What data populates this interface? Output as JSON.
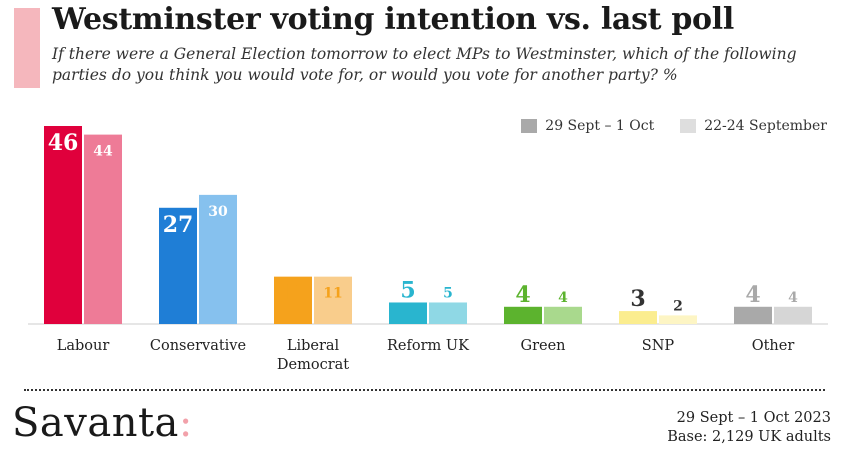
{
  "header": {
    "title": "Westminster voting intention vs. last poll",
    "subtitle": "If there were a General Election tomorrow to elect MPs to Westminster, which of the following parties do you think you would vote for, or would you vote for another party? %"
  },
  "chart_data": {
    "type": "bar",
    "categories": [
      "Labour",
      "Conservative",
      "Liberal Democrat",
      "Reform UK",
      "Green",
      "SNP",
      "Other"
    ],
    "category_lines": [
      [
        "Labour"
      ],
      [
        "Conservative"
      ],
      [
        "Liberal",
        "Democrat"
      ],
      [
        "Reform UK"
      ],
      [
        "Green"
      ],
      [
        "SNP"
      ],
      [
        "Other"
      ]
    ],
    "series": [
      {
        "name": "29 Sept – 1 Oct",
        "values": [
          46,
          27,
          11,
          5,
          4,
          3,
          4
        ],
        "colors": [
          "#e0003c",
          "#1f7ed6",
          "#f5a21c",
          "#29b5cf",
          "#5cb32e",
          "#fbed8f",
          "#a9a9a9"
        ],
        "label_colors": [
          "#ffffff",
          "#ffffff",
          "#f5a21c",
          "#29b5cf",
          "#5cb32e",
          "#333333",
          "#a9a9a9"
        ]
      },
      {
        "name": "22-24 September",
        "values": [
          44,
          30,
          11,
          5,
          4,
          2,
          4
        ],
        "colors": [
          "#ee7b97",
          "#86c1ee",
          "#f9cd8c",
          "#8fd8e5",
          "#a9d98d",
          "#fdf5c4",
          "#d6d6d6"
        ],
        "label_colors": [
          "#ffffff",
          "#ffffff",
          "#f5a21c",
          "#29b5cf",
          "#5cb32e",
          "#333333",
          "#a9a9a9"
        ]
      }
    ],
    "legend_colors": [
      "#a9a9a9",
      "#dedede"
    ],
    "ylim": [
      0,
      46
    ],
    "legend_position": "top-right",
    "grid": false
  },
  "footer": {
    "brand_name": "Savanta",
    "brand_mark": ":",
    "date": "29 Sept – 1 Oct 2023",
    "base": "Base: 2,129 UK adults"
  }
}
